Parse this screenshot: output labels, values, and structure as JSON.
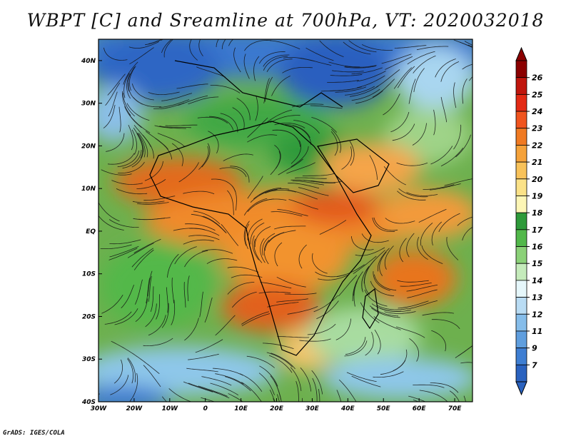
{
  "title": "WBPT [C] and Sreamline at 700hPa, VT: 2020032018",
  "credit": "GrADS: IGES/COLA",
  "map": {
    "lon_range": [
      -30,
      75
    ],
    "lat_range": [
      -40,
      45
    ],
    "lat_ticks": [
      "40N",
      "30N",
      "20N",
      "10N",
      "EQ",
      "10S",
      "20S",
      "30S",
      "40S"
    ],
    "lon_ticks": [
      "30W",
      "20W",
      "10W",
      "0",
      "10E",
      "20E",
      "30E",
      "40E",
      "50E",
      "60E",
      "70E"
    ]
  },
  "colorbar": {
    "labels": [
      "26",
      "25",
      "24",
      "23",
      "22",
      "21",
      "20",
      "19",
      "18",
      "17",
      "16",
      "15",
      "14",
      "13",
      "12",
      "11",
      "9",
      "7"
    ],
    "colors": [
      "#8b0000",
      "#c0160d",
      "#e32a14",
      "#f0541e",
      "#f07a22",
      "#f5a23a",
      "#f8c25a",
      "#fbe288",
      "#fdf6b6",
      "#2e9a3a",
      "#52b84a",
      "#8bd178",
      "#c5ebbb",
      "#e6f7fb",
      "#b9dcf4",
      "#86bdea",
      "#5f9ede",
      "#3e7ed2",
      "#2a62bf"
    ]
  }
}
